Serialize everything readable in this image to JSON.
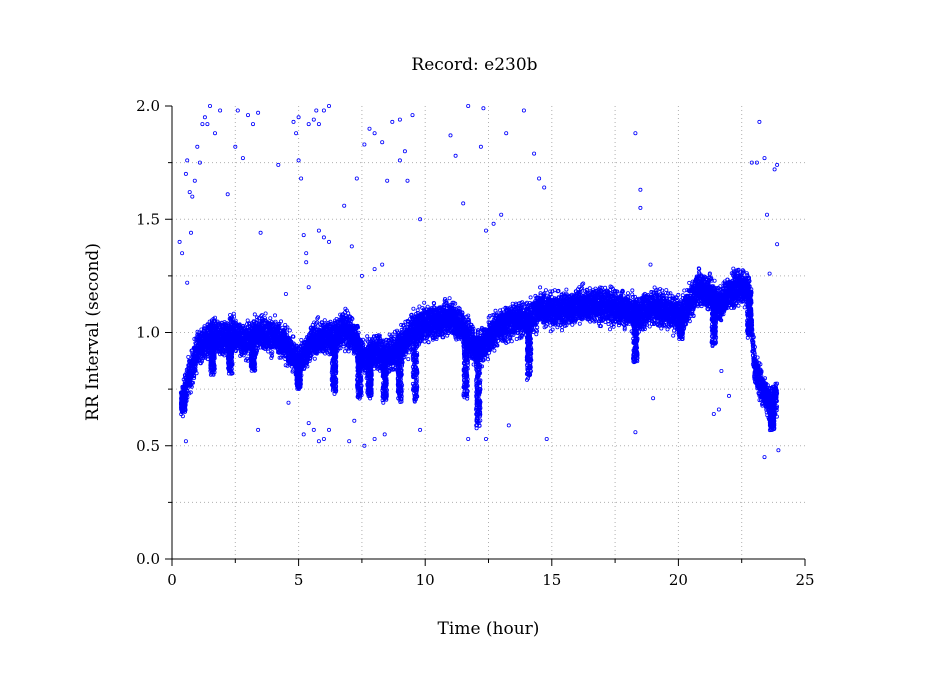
{
  "chart_data": {
    "type": "scatter",
    "title": "Record:  e230b",
    "xlabel": "Time (hour)",
    "ylabel": "RR Interval (second)",
    "xlim": [
      0,
      25
    ],
    "ylim": [
      0.0,
      2.0
    ],
    "x_ticks": [
      "0",
      "5",
      "10",
      "15",
      "20",
      "25"
    ],
    "y_ticks": [
      "0.0",
      "0.5",
      "1.0",
      "1.5",
      "2.0"
    ],
    "grid": true,
    "marker": "open-circle",
    "series_color": "#0000ff",
    "axis_color": "#000000",
    "grid_color": "#b0b0b0",
    "trend": [
      {
        "x": 0.35,
        "y": 0.68
      },
      {
        "x": 0.6,
        "y": 0.78
      },
      {
        "x": 0.8,
        "y": 0.85
      },
      {
        "x": 1.0,
        "y": 0.92
      },
      {
        "x": 1.3,
        "y": 0.96
      },
      {
        "x": 1.6,
        "y": 0.98
      },
      {
        "x": 2.0,
        "y": 0.97
      },
      {
        "x": 2.4,
        "y": 1.0
      },
      {
        "x": 2.8,
        "y": 0.96
      },
      {
        "x": 3.2,
        "y": 0.98
      },
      {
        "x": 3.6,
        "y": 1.0
      },
      {
        "x": 4.0,
        "y": 0.98
      },
      {
        "x": 4.5,
        "y": 0.95
      },
      {
        "x": 5.0,
        "y": 0.86
      },
      {
        "x": 5.5,
        "y": 0.96
      },
      {
        "x": 6.0,
        "y": 0.98
      },
      {
        "x": 6.4,
        "y": 0.97
      },
      {
        "x": 6.8,
        "y": 1.02
      },
      {
        "x": 7.2,
        "y": 0.98
      },
      {
        "x": 7.6,
        "y": 0.88
      },
      {
        "x": 8.0,
        "y": 0.92
      },
      {
        "x": 8.4,
        "y": 0.9
      },
      {
        "x": 8.8,
        "y": 0.92
      },
      {
        "x": 9.2,
        "y": 0.96
      },
      {
        "x": 9.6,
        "y": 1.02
      },
      {
        "x": 10.0,
        "y": 1.04
      },
      {
        "x": 10.5,
        "y": 1.05
      },
      {
        "x": 11.0,
        "y": 1.07
      },
      {
        "x": 11.5,
        "y": 1.02
      },
      {
        "x": 12.0,
        "y": 0.92
      },
      {
        "x": 12.4,
        "y": 0.96
      },
      {
        "x": 12.8,
        "y": 1.02
      },
      {
        "x": 13.2,
        "y": 1.04
      },
      {
        "x": 13.6,
        "y": 1.06
      },
      {
        "x": 14.0,
        "y": 1.05
      },
      {
        "x": 14.5,
        "y": 1.1
      },
      {
        "x": 15.0,
        "y": 1.1
      },
      {
        "x": 15.5,
        "y": 1.1
      },
      {
        "x": 16.0,
        "y": 1.12
      },
      {
        "x": 16.5,
        "y": 1.12
      },
      {
        "x": 17.0,
        "y": 1.12
      },
      {
        "x": 17.5,
        "y": 1.11
      },
      {
        "x": 18.0,
        "y": 1.1
      },
      {
        "x": 18.5,
        "y": 1.08
      },
      {
        "x": 19.0,
        "y": 1.12
      },
      {
        "x": 19.5,
        "y": 1.1
      },
      {
        "x": 20.0,
        "y": 1.07
      },
      {
        "x": 20.4,
        "y": 1.12
      },
      {
        "x": 20.8,
        "y": 1.2
      },
      {
        "x": 21.2,
        "y": 1.18
      },
      {
        "x": 21.6,
        "y": 1.12
      },
      {
        "x": 22.0,
        "y": 1.18
      },
      {
        "x": 22.4,
        "y": 1.2
      },
      {
        "x": 22.8,
        "y": 1.18
      },
      {
        "x": 23.0,
        "y": 0.85
      },
      {
        "x": 23.3,
        "y": 0.76
      },
      {
        "x": 23.6,
        "y": 0.68
      },
      {
        "x": 23.9,
        "y": 0.72
      }
    ],
    "spread": 0.07,
    "dips": [
      {
        "x": 0.45,
        "y": 0.66
      },
      {
        "x": 1.6,
        "y": 0.82
      },
      {
        "x": 2.3,
        "y": 0.82
      },
      {
        "x": 3.2,
        "y": 0.84
      },
      {
        "x": 5.0,
        "y": 0.76
      },
      {
        "x": 6.4,
        "y": 0.74
      },
      {
        "x": 7.4,
        "y": 0.72
      },
      {
        "x": 7.8,
        "y": 0.72
      },
      {
        "x": 8.4,
        "y": 0.7
      },
      {
        "x": 9.0,
        "y": 0.7
      },
      {
        "x": 9.6,
        "y": 0.7
      },
      {
        "x": 11.6,
        "y": 0.72
      },
      {
        "x": 12.1,
        "y": 0.58
      },
      {
        "x": 14.1,
        "y": 0.8
      },
      {
        "x": 18.3,
        "y": 0.88
      },
      {
        "x": 20.1,
        "y": 0.98
      },
      {
        "x": 21.4,
        "y": 0.95
      },
      {
        "x": 22.8,
        "y": 0.98
      },
      {
        "x": 23.7,
        "y": 0.58
      }
    ],
    "outliers": [
      {
        "x": 0.3,
        "y": 1.4
      },
      {
        "x": 0.4,
        "y": 1.35
      },
      {
        "x": 0.55,
        "y": 1.7
      },
      {
        "x": 0.6,
        "y": 1.76
      },
      {
        "x": 0.7,
        "y": 1.62
      },
      {
        "x": 0.8,
        "y": 1.6
      },
      {
        "x": 0.9,
        "y": 1.67
      },
      {
        "x": 1.0,
        "y": 1.82
      },
      {
        "x": 1.1,
        "y": 1.75
      },
      {
        "x": 1.2,
        "y": 1.92
      },
      {
        "x": 1.3,
        "y": 1.95
      },
      {
        "x": 1.4,
        "y": 1.92
      },
      {
        "x": 1.5,
        "y": 2.0
      },
      {
        "x": 1.7,
        "y": 1.88
      },
      {
        "x": 1.9,
        "y": 1.98
      },
      {
        "x": 2.2,
        "y": 1.61
      },
      {
        "x": 2.5,
        "y": 1.82
      },
      {
        "x": 2.6,
        "y": 1.98
      },
      {
        "x": 2.8,
        "y": 1.77
      },
      {
        "x": 3.0,
        "y": 1.96
      },
      {
        "x": 3.2,
        "y": 1.92
      },
      {
        "x": 3.4,
        "y": 1.97
      },
      {
        "x": 0.75,
        "y": 1.44
      },
      {
        "x": 0.6,
        "y": 1.22
      },
      {
        "x": 0.55,
        "y": 0.52
      },
      {
        "x": 3.5,
        "y": 1.44
      },
      {
        "x": 3.4,
        "y": 0.57
      },
      {
        "x": 4.2,
        "y": 1.74
      },
      {
        "x": 4.5,
        "y": 1.17
      },
      {
        "x": 4.6,
        "y": 0.69
      },
      {
        "x": 4.8,
        "y": 1.93
      },
      {
        "x": 4.9,
        "y": 1.88
      },
      {
        "x": 5.0,
        "y": 1.95
      },
      {
        "x": 5.1,
        "y": 1.68
      },
      {
        "x": 5.0,
        "y": 1.76
      },
      {
        "x": 5.2,
        "y": 1.43
      },
      {
        "x": 5.3,
        "y": 1.35
      },
      {
        "x": 5.3,
        "y": 1.31
      },
      {
        "x": 5.4,
        "y": 1.2
      },
      {
        "x": 5.4,
        "y": 1.92
      },
      {
        "x": 5.6,
        "y": 1.94
      },
      {
        "x": 5.7,
        "y": 1.98
      },
      {
        "x": 5.8,
        "y": 1.92
      },
      {
        "x": 6.0,
        "y": 1.98
      },
      {
        "x": 6.2,
        "y": 2.0
      },
      {
        "x": 5.8,
        "y": 1.45
      },
      {
        "x": 6.0,
        "y": 1.42
      },
      {
        "x": 6.2,
        "y": 1.4
      },
      {
        "x": 5.2,
        "y": 0.55
      },
      {
        "x": 5.4,
        "y": 0.6
      },
      {
        "x": 5.6,
        "y": 0.57
      },
      {
        "x": 5.8,
        "y": 0.52
      },
      {
        "x": 6.0,
        "y": 0.53
      },
      {
        "x": 6.2,
        "y": 0.57
      },
      {
        "x": 6.8,
        "y": 1.56
      },
      {
        "x": 7.1,
        "y": 1.38
      },
      {
        "x": 7.3,
        "y": 1.68
      },
      {
        "x": 7.6,
        "y": 1.83
      },
      {
        "x": 7.8,
        "y": 1.9
      },
      {
        "x": 8.0,
        "y": 1.88
      },
      {
        "x": 8.3,
        "y": 1.84
      },
      {
        "x": 8.5,
        "y": 1.67
      },
      {
        "x": 8.7,
        "y": 1.93
      },
      {
        "x": 9.0,
        "y": 1.94
      },
      {
        "x": 9.2,
        "y": 1.8
      },
      {
        "x": 9.5,
        "y": 1.96
      },
      {
        "x": 9.0,
        "y": 1.76
      },
      {
        "x": 9.3,
        "y": 1.67
      },
      {
        "x": 7.5,
        "y": 1.25
      },
      {
        "x": 8.0,
        "y": 1.28
      },
      {
        "x": 8.3,
        "y": 1.3
      },
      {
        "x": 7.0,
        "y": 0.52
      },
      {
        "x": 7.2,
        "y": 0.61
      },
      {
        "x": 7.6,
        "y": 0.5
      },
      {
        "x": 8.0,
        "y": 0.53
      },
      {
        "x": 8.4,
        "y": 0.55
      },
      {
        "x": 9.8,
        "y": 1.5
      },
      {
        "x": 9.8,
        "y": 0.57
      },
      {
        "x": 11.0,
        "y": 1.87
      },
      {
        "x": 11.2,
        "y": 1.78
      },
      {
        "x": 11.5,
        "y": 1.57
      },
      {
        "x": 11.7,
        "y": 2.0
      },
      {
        "x": 12.2,
        "y": 1.82
      },
      {
        "x": 12.3,
        "y": 1.99
      },
      {
        "x": 12.4,
        "y": 1.45
      },
      {
        "x": 12.7,
        "y": 1.48
      },
      {
        "x": 13.0,
        "y": 1.52
      },
      {
        "x": 13.2,
        "y": 1.88
      },
      {
        "x": 13.9,
        "y": 1.98
      },
      {
        "x": 14.3,
        "y": 1.79
      },
      {
        "x": 14.5,
        "y": 1.68
      },
      {
        "x": 14.7,
        "y": 1.64
      },
      {
        "x": 11.7,
        "y": 0.53
      },
      {
        "x": 12.4,
        "y": 0.53
      },
      {
        "x": 13.3,
        "y": 0.59
      },
      {
        "x": 14.8,
        "y": 0.53
      },
      {
        "x": 18.3,
        "y": 1.88
      },
      {
        "x": 18.5,
        "y": 1.63
      },
      {
        "x": 18.5,
        "y": 1.55
      },
      {
        "x": 18.3,
        "y": 0.56
      },
      {
        "x": 18.9,
        "y": 1.3
      },
      {
        "x": 19.0,
        "y": 0.71
      },
      {
        "x": 21.4,
        "y": 0.64
      },
      {
        "x": 21.6,
        "y": 0.66
      },
      {
        "x": 21.7,
        "y": 0.83
      },
      {
        "x": 22.0,
        "y": 0.72
      },
      {
        "x": 22.9,
        "y": 1.75
      },
      {
        "x": 23.1,
        "y": 1.75
      },
      {
        "x": 23.2,
        "y": 1.93
      },
      {
        "x": 23.4,
        "y": 1.77
      },
      {
        "x": 23.5,
        "y": 1.52
      },
      {
        "x": 23.6,
        "y": 1.26
      },
      {
        "x": 23.8,
        "y": 1.72
      },
      {
        "x": 23.9,
        "y": 1.74
      },
      {
        "x": 23.9,
        "y": 1.39
      },
      {
        "x": 23.4,
        "y": 0.45
      },
      {
        "x": 23.95,
        "y": 0.48
      }
    ]
  }
}
